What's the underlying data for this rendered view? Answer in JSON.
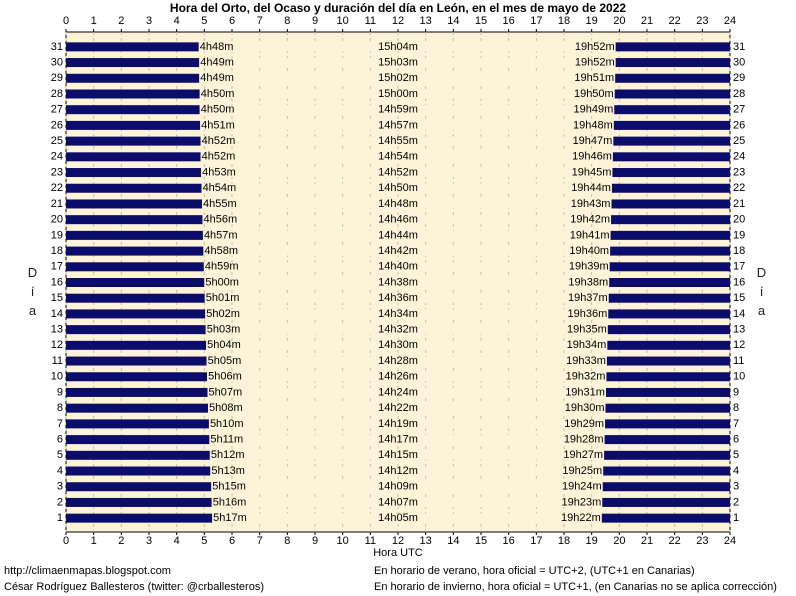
{
  "chart_data": {
    "type": "sun-range-bar",
    "title": "Hora del Orto, del Ocaso y duración del día en León, en el mes de mayo de 2022",
    "x_label": "Hora UTC",
    "y_label": "Día",
    "categories": [
      "1",
      "2",
      "3",
      "4",
      "5",
      "6",
      "7",
      "8",
      "9",
      "10",
      "11",
      "12",
      "13",
      "14",
      "15",
      "16",
      "17",
      "18",
      "19",
      "20",
      "21",
      "22",
      "23",
      "24",
      "25",
      "26",
      "27",
      "28",
      "29",
      "30",
      "31"
    ],
    "xlim": [
      0,
      24
    ],
    "xticks": [
      0,
      1,
      2,
      3,
      4,
      5,
      6,
      7,
      8,
      9,
      10,
      11,
      12,
      13,
      14,
      15,
      16,
      17,
      18,
      19,
      20,
      21,
      22,
      23,
      24
    ],
    "grid": true,
    "background": "#fdf3d8",
    "series": [
      {
        "color": "#0c0c6a",
        "values": [
          5.2833,
          5.2667,
          5.25,
          5.2167,
          5.2,
          5.1833,
          5.1667,
          5.1333,
          5.1167,
          5.1,
          5.0833,
          5.0667,
          5.05,
          5.0333,
          5.0167,
          5,
          4.9833,
          4.9667,
          4.95,
          4.9333,
          4.9167,
          4.9,
          4.8833,
          4.8667,
          4.8667,
          4.85,
          4.8333,
          4.8333,
          4.8167,
          4.8167,
          4.8
        ],
        "value_labels": [
          "5h17m",
          "5h16m",
          "5h15m",
          "5h13m",
          "5h12m",
          "5h11m",
          "5h10m",
          "5h08m",
          "5h07m",
          "5h06m",
          "5h05m",
          "5h04m",
          "5h03m",
          "5h02m",
          "5h01m",
          "5h00m",
          "4h59m",
          "4h58m",
          "4h57m",
          "4h56m",
          "4h55m",
          "4h54m",
          "4h53m",
          "4h52m",
          "4h52m",
          "4h51m",
          "4h50m",
          "4h50m",
          "4h49m",
          "4h49m",
          "4h48m"
        ]
      },
      {
        "color": "#fdf3d8",
        "values": [
          14.0833,
          14.1167,
          14.15,
          14.2,
          14.25,
          14.2833,
          14.3167,
          14.3667,
          14.4,
          14.4333,
          14.4667,
          14.5,
          14.5333,
          14.5667,
          14.6,
          14.6333,
          14.6667,
          14.7,
          14.7333,
          14.7667,
          14.8,
          14.8333,
          14.8667,
          14.9,
          14.9167,
          14.95,
          14.9833,
          15,
          15.0333,
          15.05,
          15.0667
        ],
        "value_labels": [
          "14h05m",
          "14h07m",
          "14h09m",
          "14h12m",
          "14h15m",
          "14h17m",
          "14h19m",
          "14h22m",
          "14h24m",
          "14h26m",
          "14h28m",
          "14h30m",
          "14h32m",
          "14h34m",
          "14h36m",
          "14h38m",
          "14h40m",
          "14h42m",
          "14h44m",
          "14h46m",
          "14h48m",
          "14h50m",
          "14h52m",
          "14h54m",
          "14h55m",
          "14h57m",
          "14h59m",
          "15h00m",
          "15h02m",
          "15h03m",
          "15h04m"
        ]
      },
      {
        "color": "#0c0c6a",
        "values": [
          19.3667,
          19.3833,
          19.4,
          19.4167,
          19.45,
          19.4667,
          19.4833,
          19.5,
          19.5167,
          19.5333,
          19.55,
          19.5667,
          19.5833,
          19.6,
          19.6167,
          19.6333,
          19.65,
          19.6667,
          19.6833,
          19.7,
          19.7167,
          19.7333,
          19.75,
          19.7667,
          19.7833,
          19.8,
          19.8167,
          19.8333,
          19.85,
          19.8667,
          19.8667
        ],
        "value_labels": [
          "19h22m",
          "19h23m",
          "19h24m",
          "19h25m",
          "19h27m",
          "19h28m",
          "19h29m",
          "19h30m",
          "19h31m",
          "19h32m",
          "19h33m",
          "19h34m",
          "19h35m",
          "19h36m",
          "19h37m",
          "19h38m",
          "19h39m",
          "19h40m",
          "19h41m",
          "19h42m",
          "19h43m",
          "19h44m",
          "19h45m",
          "19h46m",
          "19h47m",
          "19h48m",
          "19h49m",
          "19h50m",
          "19h51m",
          "19h52m",
          "19h52m"
        ]
      }
    ],
    "annotations": [
      "http://climaenmapas.blogspot.com",
      "César Rodríguez Ballesteros (twitter: @crballesteros)",
      "En horario de verano, hora oficial = UTC+2, (UTC+1 en Canarias)",
      "En horario de invierno, hora oficial = UTC+1, (en Canarias no se aplica corrección)"
    ]
  }
}
